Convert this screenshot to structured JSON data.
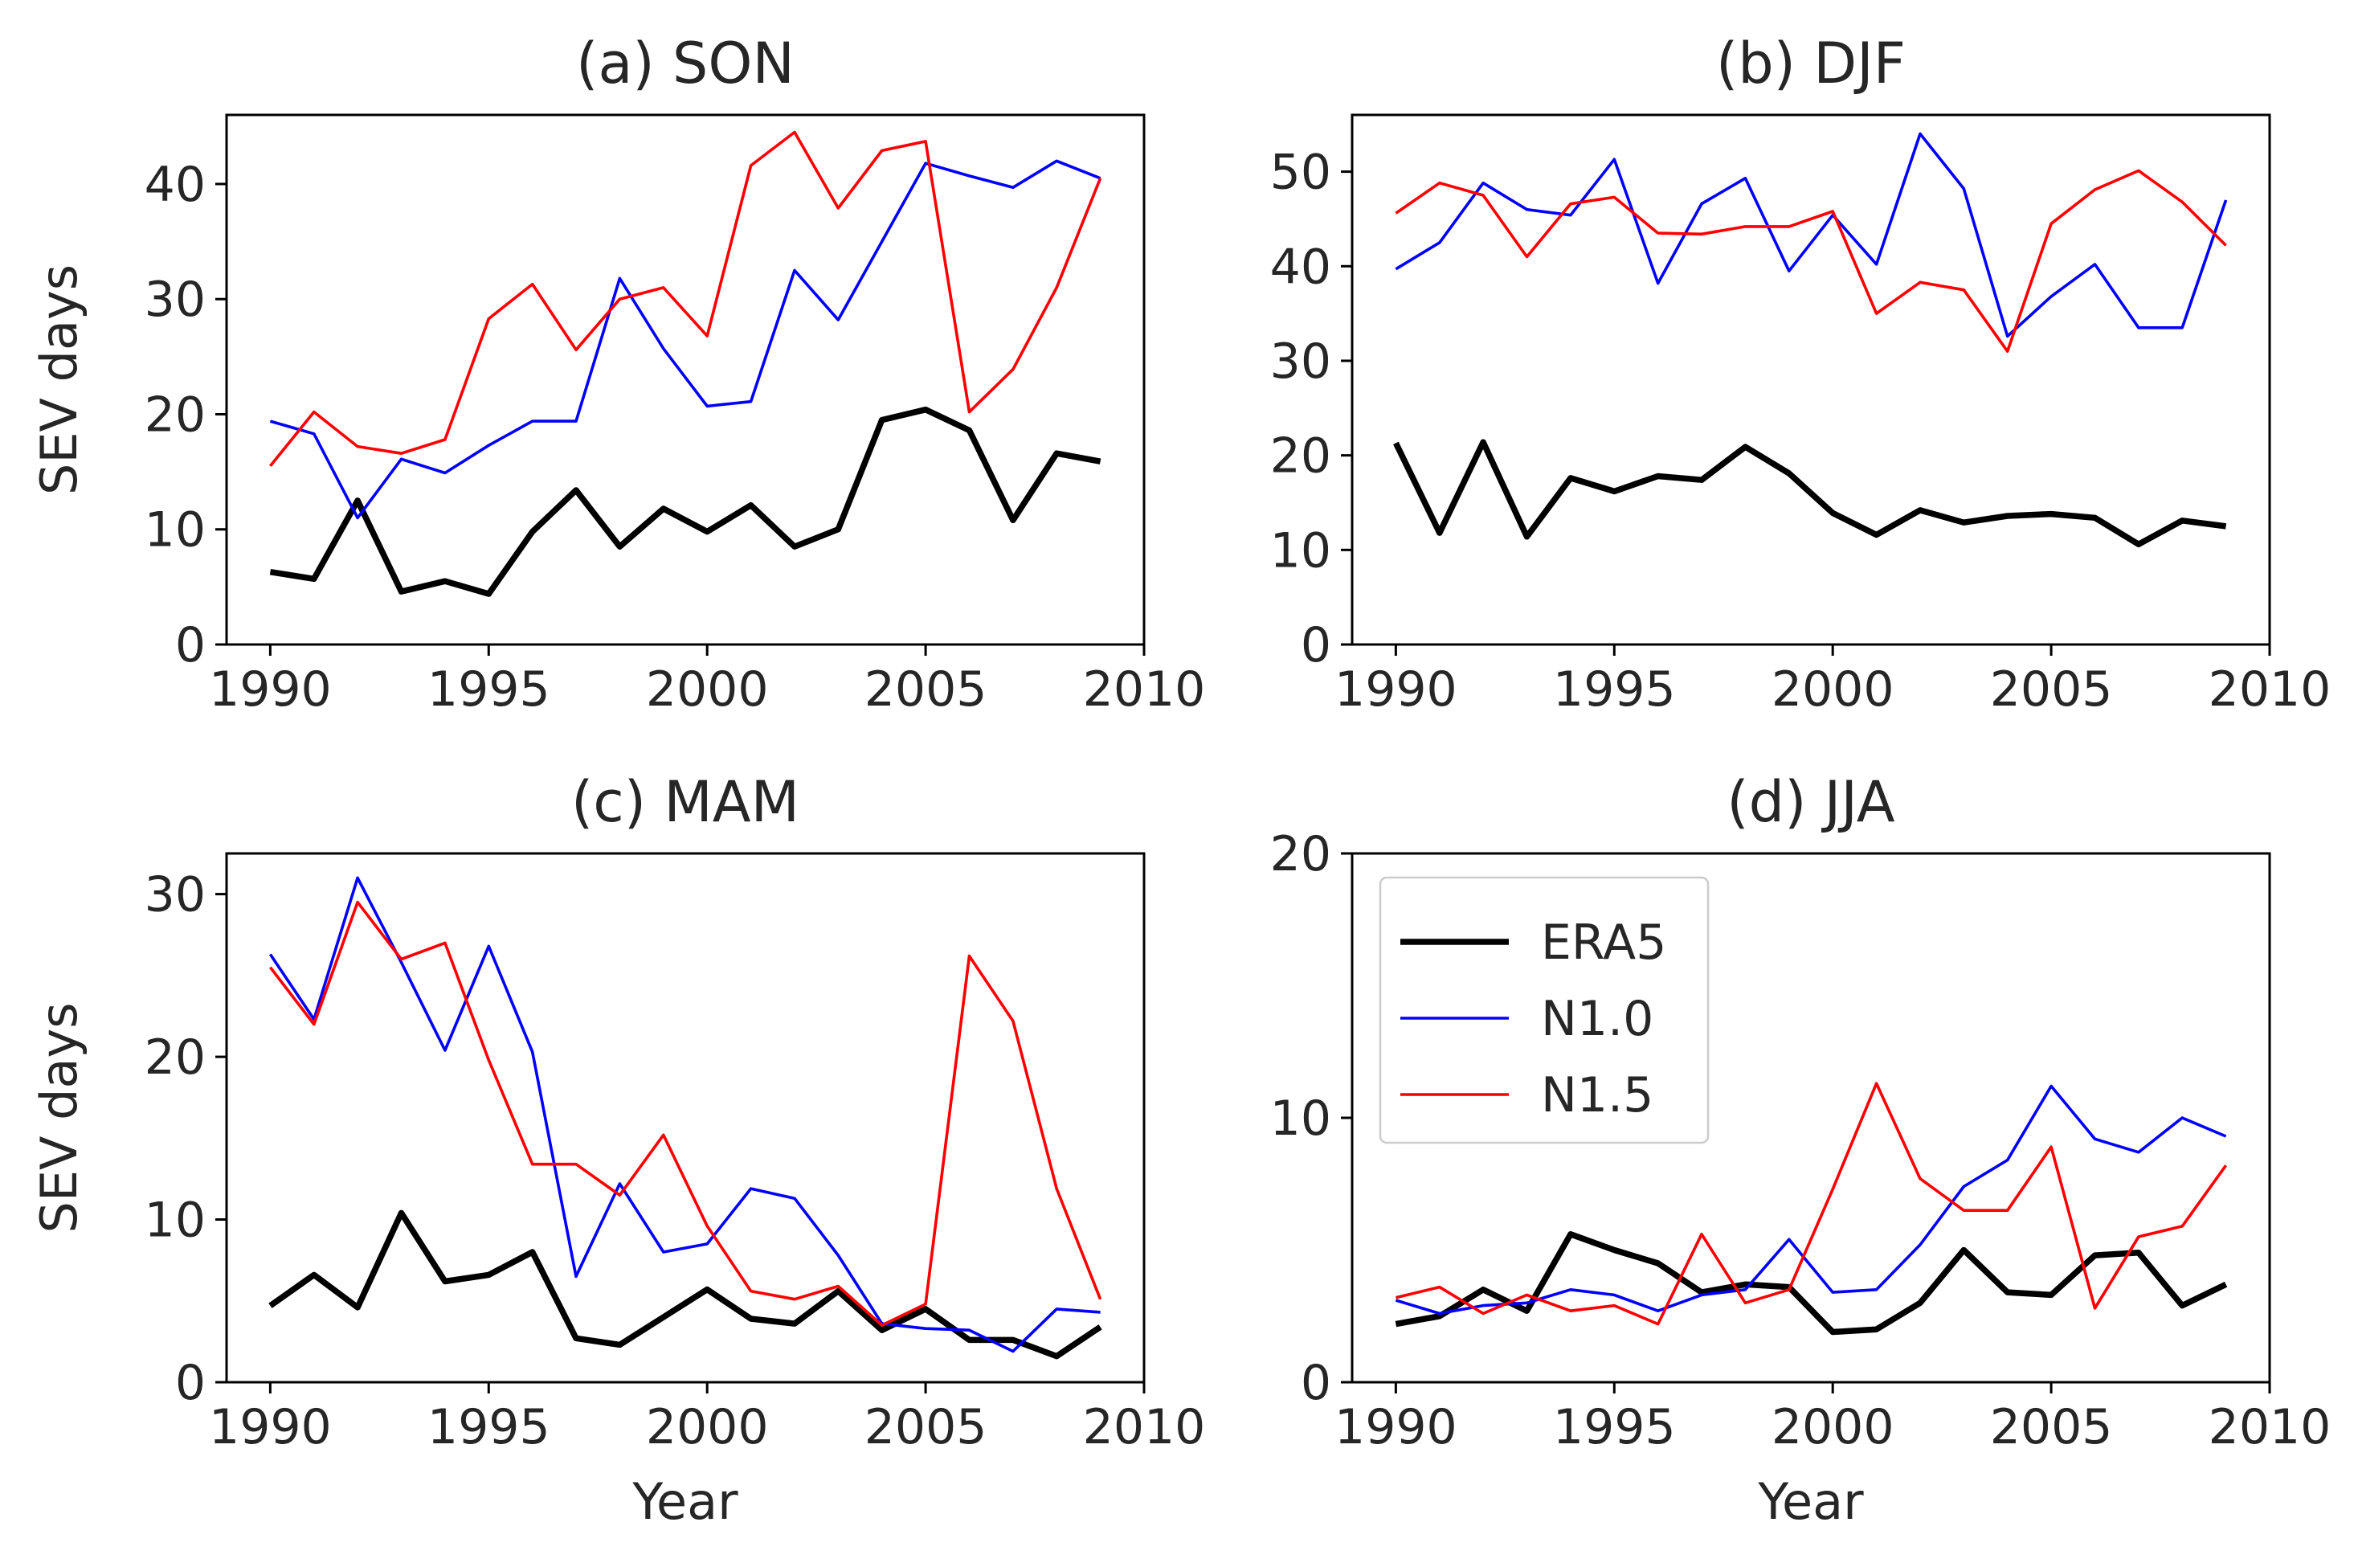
{
  "colors": {
    "ERA5": "#000000",
    "N1.0": "#0000ff",
    "N1.5": "#ff0000",
    "axis": "#000000",
    "text": "#262626"
  },
  "legend": {
    "panel": 3,
    "placement": "upper-left",
    "entries": [
      {
        "name": "ERA5",
        "color": "#000000"
      },
      {
        "name": "N1.0",
        "color": "#0000ff"
      },
      {
        "name": "N1.5",
        "color": "#ff0000"
      }
    ]
  },
  "chart_data": [
    {
      "type": "line",
      "title": "(a) SON",
      "xlabel": "",
      "ylabel": "SEV days",
      "xlim": [
        1989,
        2010
      ],
      "ylim": [
        0,
        46
      ],
      "xticks": [
        1990,
        1995,
        2000,
        2005,
        2010
      ],
      "yticks": [
        0,
        10,
        20,
        30,
        40
      ],
      "x": [
        1990,
        1991,
        1992,
        1993,
        1994,
        1995,
        1996,
        1997,
        1998,
        1999,
        2000,
        2001,
        2002,
        2003,
        2004,
        2005,
        2006,
        2007,
        2008,
        2009
      ],
      "series": [
        {
          "name": "ERA5",
          "color": "#000000",
          "values": [
            6.3,
            5.7,
            12.5,
            4.6,
            5.5,
            4.4,
            9.8,
            13.4,
            8.5,
            11.8,
            9.8,
            12.1,
            8.5,
            10.0,
            19.5,
            20.4,
            18.6,
            10.8,
            16.6,
            15.9
          ]
        },
        {
          "name": "N1.0",
          "color": "#0000ff",
          "values": [
            19.4,
            18.3,
            11.0,
            16.1,
            14.9,
            17.3,
            19.4,
            19.4,
            31.8,
            25.7,
            20.7,
            21.1,
            32.5,
            28.2,
            35.0,
            41.8,
            40.7,
            39.7,
            42.0,
            40.5
          ]
        },
        {
          "name": "N1.5",
          "color": "#ff0000",
          "values": [
            15.5,
            20.2,
            17.2,
            16.6,
            17.8,
            28.3,
            31.3,
            25.6,
            30.0,
            31.0,
            26.8,
            41.6,
            44.5,
            37.9,
            42.9,
            43.7,
            20.2,
            23.9,
            31.0,
            40.5
          ]
        }
      ]
    },
    {
      "type": "line",
      "title": "(b) DJF",
      "xlabel": "",
      "ylabel": "",
      "xlim": [
        1989,
        2010
      ],
      "ylim": [
        0,
        56
      ],
      "xticks": [
        1990,
        1995,
        2000,
        2005,
        2010
      ],
      "yticks": [
        0,
        10,
        20,
        30,
        40,
        50
      ],
      "x": [
        1990,
        1991,
        1992,
        1993,
        1994,
        1995,
        1996,
        1997,
        1998,
        1999,
        2000,
        2001,
        2002,
        2003,
        2004,
        2005,
        2006,
        2007,
        2008,
        2009
      ],
      "series": [
        {
          "name": "ERA5",
          "color": "#000000",
          "values": [
            21.3,
            11.8,
            21.4,
            11.4,
            17.6,
            16.2,
            17.8,
            17.4,
            20.9,
            18.1,
            13.9,
            11.6,
            14.2,
            12.9,
            13.6,
            13.8,
            13.4,
            10.6,
            13.1,
            12.5
          ]
        },
        {
          "name": "N1.0",
          "color": "#0000ff",
          "values": [
            39.7,
            42.5,
            48.8,
            46.0,
            45.4,
            51.3,
            38.2,
            46.6,
            49.3,
            39.5,
            45.4,
            40.2,
            54.0,
            48.2,
            32.6,
            36.8,
            40.2,
            33.5,
            33.5,
            47.0
          ]
        },
        {
          "name": "N1.5",
          "color": "#ff0000",
          "values": [
            45.6,
            48.8,
            47.5,
            41.0,
            46.6,
            47.3,
            43.5,
            43.4,
            44.2,
            44.2,
            45.8,
            35.0,
            38.3,
            37.5,
            31.0,
            44.5,
            48.1,
            50.1,
            46.8,
            42.2
          ]
        }
      ]
    },
    {
      "type": "line",
      "title": "(c) MAM",
      "xlabel": "Year",
      "ylabel": "SEV days",
      "xlim": [
        1989,
        2010
      ],
      "ylim": [
        0,
        32.5
      ],
      "xticks": [
        1990,
        1995,
        2000,
        2005,
        2010
      ],
      "yticks": [
        0,
        10,
        20,
        30
      ],
      "x": [
        1990,
        1991,
        1992,
        1993,
        1994,
        1995,
        1996,
        1997,
        1998,
        1999,
        2000,
        2001,
        2002,
        2003,
        2004,
        2005,
        2006,
        2007,
        2008,
        2009
      ],
      "series": [
        {
          "name": "ERA5",
          "color": "#000000",
          "values": [
            4.7,
            6.6,
            4.6,
            10.4,
            6.2,
            6.6,
            8.0,
            2.7,
            2.3,
            4.0,
            5.7,
            3.9,
            3.6,
            5.6,
            3.2,
            4.5,
            2.6,
            2.6,
            1.6,
            3.4
          ]
        },
        {
          "name": "N1.0",
          "color": "#0000ff",
          "values": [
            26.3,
            22.3,
            31.0,
            25.8,
            20.4,
            26.8,
            20.3,
            6.5,
            12.2,
            8.0,
            8.5,
            11.9,
            11.3,
            7.8,
            3.6,
            3.3,
            3.2,
            1.9,
            4.5,
            4.3
          ]
        },
        {
          "name": "N1.5",
          "color": "#ff0000",
          "values": [
            25.5,
            22.0,
            29.5,
            26.0,
            27.0,
            19.8,
            13.4,
            13.4,
            11.5,
            15.2,
            9.6,
            5.6,
            5.1,
            5.9,
            3.5,
            4.8,
            26.2,
            22.2,
            11.9,
            5.1
          ]
        }
      ]
    },
    {
      "type": "line",
      "title": "(d) JJA",
      "xlabel": "Year",
      "ylabel": "",
      "xlim": [
        1989,
        2010
      ],
      "ylim": [
        0,
        20
      ],
      "xticks": [
        1990,
        1995,
        2000,
        2005,
        2010
      ],
      "yticks": [
        0,
        10,
        20
      ],
      "x": [
        1990,
        1991,
        1992,
        1993,
        1994,
        1995,
        1996,
        1997,
        1998,
        1999,
        2000,
        2001,
        2002,
        2003,
        2004,
        2005,
        2006,
        2007,
        2008,
        2009
      ],
      "series": [
        {
          "name": "ERA5",
          "color": "#000000",
          "values": [
            2.2,
            2.5,
            3.5,
            2.7,
            5.6,
            5.0,
            4.5,
            3.4,
            3.7,
            3.6,
            1.9,
            2.0,
            3.0,
            5.0,
            3.4,
            3.3,
            4.8,
            4.9,
            2.9,
            3.7
          ]
        },
        {
          "name": "N1.0",
          "color": "#0000ff",
          "values": [
            3.1,
            2.6,
            2.9,
            3.0,
            3.5,
            3.3,
            2.7,
            3.3,
            3.5,
            5.4,
            3.4,
            3.5,
            5.2,
            7.4,
            8.4,
            11.2,
            9.2,
            8.7,
            10.0,
            9.3
          ]
        },
        {
          "name": "N1.5",
          "color": "#ff0000",
          "values": [
            3.2,
            3.6,
            2.6,
            3.3,
            2.7,
            2.9,
            2.2,
            5.6,
            3.0,
            3.5,
            7.3,
            11.3,
            7.7,
            6.5,
            6.5,
            8.9,
            2.8,
            5.5,
            5.9,
            8.2
          ]
        }
      ]
    }
  ]
}
